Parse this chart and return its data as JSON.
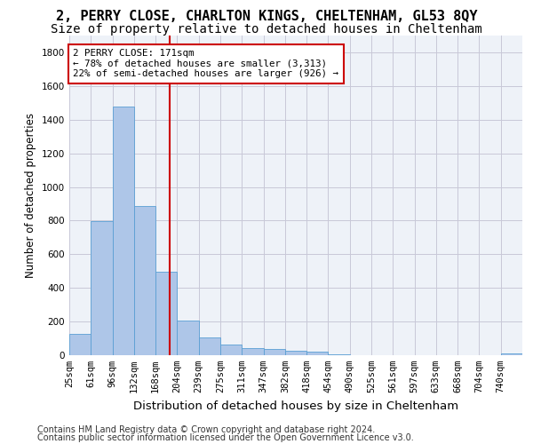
{
  "title_line1": "2, PERRY CLOSE, CHARLTON KINGS, CHELTENHAM, GL53 8QY",
  "title_line2": "Size of property relative to detached houses in Cheltenham",
  "xlabel": "Distribution of detached houses by size in Cheltenham",
  "ylabel": "Number of detached properties",
  "footer_line1": "Contains HM Land Registry data © Crown copyright and database right 2024.",
  "footer_line2": "Contains public sector information licensed under the Open Government Licence v3.0.",
  "bin_labels": [
    "25sqm",
    "61sqm",
    "96sqm",
    "132sqm",
    "168sqm",
    "204sqm",
    "239sqm",
    "275sqm",
    "311sqm",
    "347sqm",
    "382sqm",
    "418sqm",
    "454sqm",
    "490sqm",
    "525sqm",
    "561sqm",
    "597sqm",
    "633sqm",
    "668sqm",
    "704sqm",
    "740sqm"
  ],
  "bar_heights": [
    125,
    795,
    1480,
    885,
    495,
    205,
    105,
    65,
    42,
    35,
    28,
    22,
    5,
    0,
    0,
    0,
    0,
    0,
    0,
    0,
    12
  ],
  "bar_color": "#aec6e8",
  "bar_edge_color": "#5a9fd4",
  "vline_x": 4.65,
  "vline_color": "#cc0000",
  "annotation_text": "2 PERRY CLOSE: 171sqm\n← 78% of detached houses are smaller (3,313)\n22% of semi-detached houses are larger (926) →",
  "annotation_box_color": "#ffffff",
  "annotation_edge_color": "#cc0000",
  "ylim": [
    0,
    1900
  ],
  "yticks": [
    0,
    200,
    400,
    600,
    800,
    1000,
    1200,
    1400,
    1600,
    1800
  ],
  "background_color": "#eef2f8",
  "grid_color": "#c8c8d8",
  "title1_fontsize": 11,
  "title2_fontsize": 10,
  "xlabel_fontsize": 9.5,
  "ylabel_fontsize": 8.5,
  "tick_fontsize": 7.5,
  "footer_fontsize": 7
}
